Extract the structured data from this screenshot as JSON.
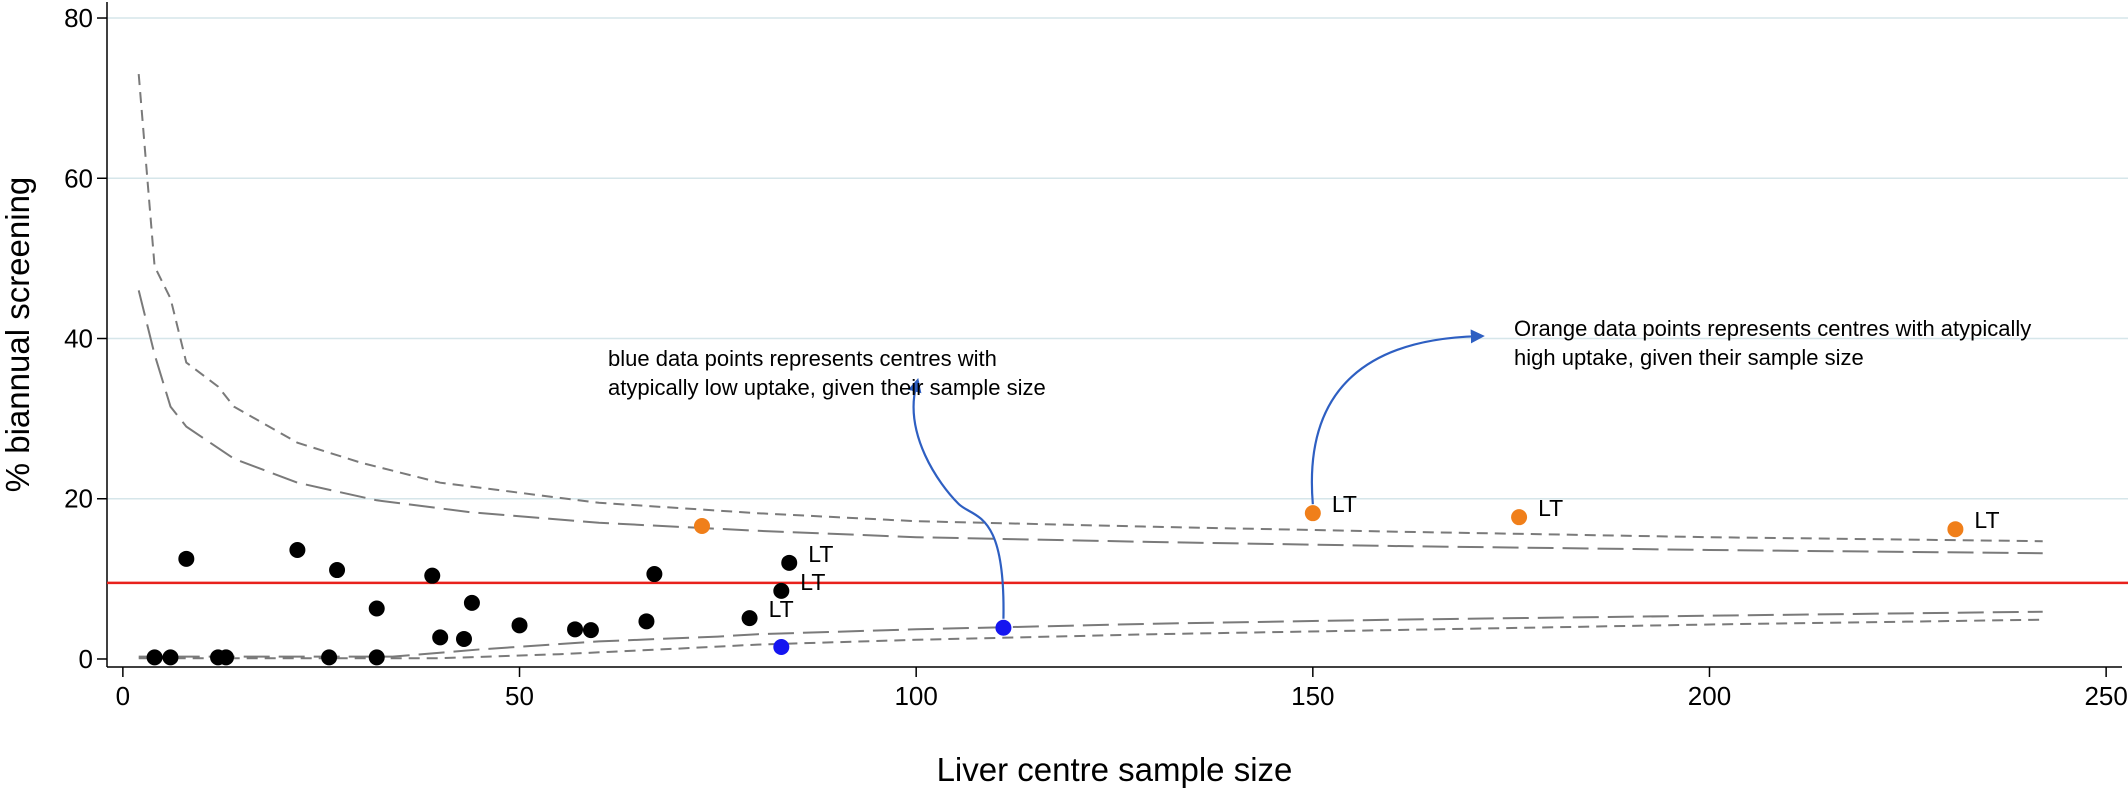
{
  "chart_data": {
    "type": "scatter",
    "title": "",
    "xlabel": "Liver centre sample size",
    "ylabel": "% biannual screening",
    "xlim": [
      -2,
      252
    ],
    "ylim": [
      -1,
      82
    ],
    "xticks": [
      0,
      50,
      100,
      150,
      200,
      250
    ],
    "yticks": [
      0,
      20,
      40,
      60,
      80
    ],
    "grid": "horizontal",
    "reference_line": {
      "y": 9.5,
      "color": "#e8211c"
    },
    "series": [
      {
        "color": "#000000",
        "points": [
          {
            "x": 4,
            "y": 0.2
          },
          {
            "x": 6,
            "y": 0.2
          },
          {
            "x": 8,
            "y": 12.5
          },
          {
            "x": 12,
            "y": 0.2
          },
          {
            "x": 13,
            "y": 0.2
          },
          {
            "x": 22,
            "y": 13.6
          },
          {
            "x": 26,
            "y": 0.2
          },
          {
            "x": 27,
            "y": 11.1
          },
          {
            "x": 32,
            "y": 6.3
          },
          {
            "x": 32,
            "y": 0.2
          },
          {
            "x": 39,
            "y": 10.4
          },
          {
            "x": 40,
            "y": 2.7
          },
          {
            "x": 43,
            "y": 2.5
          },
          {
            "x": 44,
            "y": 7.0
          },
          {
            "x": 50,
            "y": 4.2
          },
          {
            "x": 57,
            "y": 3.7
          },
          {
            "x": 59,
            "y": 3.6
          },
          {
            "x": 66,
            "y": 4.7
          },
          {
            "x": 67,
            "y": 10.6
          },
          {
            "x": 79,
            "y": 5.1,
            "label": "LT"
          },
          {
            "x": 83,
            "y": 8.5,
            "label": "LT"
          },
          {
            "x": 84,
            "y": 12.0,
            "label": "LT"
          }
        ]
      },
      {
        "color": "#f07f1a",
        "points": [
          {
            "x": 73,
            "y": 16.6
          },
          {
            "x": 150,
            "y": 18.2,
            "label": "LT"
          },
          {
            "x": 176,
            "y": 17.7,
            "label": "LT"
          },
          {
            "x": 231,
            "y": 16.2,
            "label": "LT"
          }
        ]
      },
      {
        "color": "#1515f0",
        "points": [
          {
            "x": 83,
            "y": 1.5
          },
          {
            "x": 111,
            "y": 3.9
          }
        ]
      }
    ],
    "limits": [
      {
        "style": "short-dash",
        "points": [
          [
            2,
            73
          ],
          [
            4,
            49
          ],
          [
            6,
            45
          ],
          [
            8,
            37
          ],
          [
            12,
            34
          ],
          [
            14,
            31.5
          ],
          [
            22,
            27
          ],
          [
            30,
            24.5
          ],
          [
            40,
            22
          ],
          [
            60,
            19.5
          ],
          [
            80,
            18.2
          ],
          [
            100,
            17.2
          ],
          [
            130,
            16.5
          ],
          [
            160,
            15.9
          ],
          [
            200,
            15.2
          ],
          [
            242,
            14.7
          ]
        ]
      },
      {
        "style": "long-dash",
        "points": [
          [
            2,
            46
          ],
          [
            4,
            38
          ],
          [
            6,
            31.5
          ],
          [
            8,
            29
          ],
          [
            14,
            25
          ],
          [
            22,
            22
          ],
          [
            32,
            19.8
          ],
          [
            44,
            18.3
          ],
          [
            60,
            17
          ],
          [
            80,
            16
          ],
          [
            100,
            15.2
          ],
          [
            130,
            14.6
          ],
          [
            160,
            14.1
          ],
          [
            200,
            13.6
          ],
          [
            242,
            13.2
          ]
        ]
      },
      {
        "style": "long-dash",
        "points": [
          [
            2,
            0.3
          ],
          [
            34,
            0.3
          ],
          [
            45,
            1.2
          ],
          [
            60,
            2.2
          ],
          [
            75,
            2.8
          ],
          [
            80,
            3.1
          ],
          [
            100,
            3.7
          ],
          [
            130,
            4.4
          ],
          [
            160,
            4.9
          ],
          [
            200,
            5.4
          ],
          [
            242,
            5.9
          ]
        ]
      },
      {
        "style": "short-dash",
        "points": [
          [
            2,
            0.1
          ],
          [
            40,
            0.1
          ],
          [
            55,
            0.6
          ],
          [
            70,
            1.3
          ],
          [
            80,
            1.8
          ],
          [
            100,
            2.4
          ],
          [
            130,
            3.1
          ],
          [
            160,
            3.6
          ],
          [
            200,
            4.3
          ],
          [
            242,
            4.9
          ]
        ]
      }
    ],
    "annotations": [
      {
        "lines": [
          "blue data points represents centres with",
          "atypically low uptake, given their sample size"
        ]
      },
      {
        "lines": [
          "Orange data points represents centres with atypically",
          "high uptake, given their sample size"
        ]
      }
    ],
    "colors": {
      "grid": "#d6e6ea",
      "arrow": "#2e5fc2",
      "limit_line": "#7a7a7a"
    }
  }
}
